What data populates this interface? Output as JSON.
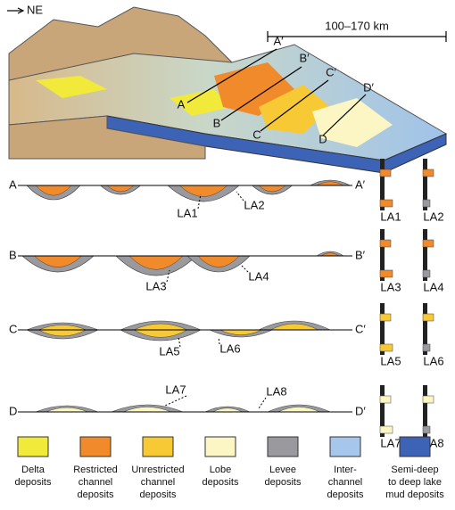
{
  "block": {
    "direction": "NE",
    "scale": "100–170 km",
    "section_labels": [
      "A",
      "A′",
      "B",
      "B′",
      "C",
      "C′",
      "D",
      "D′"
    ]
  },
  "sections": [
    {
      "start": "A",
      "end": "A′",
      "labels": [
        "LA1",
        "LA2"
      ]
    },
    {
      "start": "B",
      "end": "B′",
      "labels": [
        "LA3",
        "LA4"
      ]
    },
    {
      "start": "C",
      "end": "C′",
      "labels": [
        "LA5",
        "LA6"
      ]
    },
    {
      "start": "D",
      "end": "D′",
      "labels": [
        "LA7",
        "LA8"
      ]
    }
  ],
  "legend": [
    {
      "lines": [
        "Delta",
        "deposits"
      ],
      "color": "#f2ea3a"
    },
    {
      "lines": [
        "Restricted",
        "channel",
        "deposits"
      ],
      "color": "#f08a2a"
    },
    {
      "lines": [
        "Unrestricted",
        "channel",
        "deposits"
      ],
      "color": "#f7c935"
    },
    {
      "lines": [
        "Lobe",
        "deposits"
      ],
      "color": "#fbf6c4"
    },
    {
      "lines": [
        "Levee",
        "deposits"
      ],
      "color": "#9a999e"
    },
    {
      "lines": [
        "Inter-",
        "channel",
        "deposits"
      ],
      "color": "#a7c6ec"
    },
    {
      "lines": [
        "Semi-deep",
        "to deep lake",
        "mud deposits"
      ],
      "color": "#3c63b6"
    }
  ]
}
